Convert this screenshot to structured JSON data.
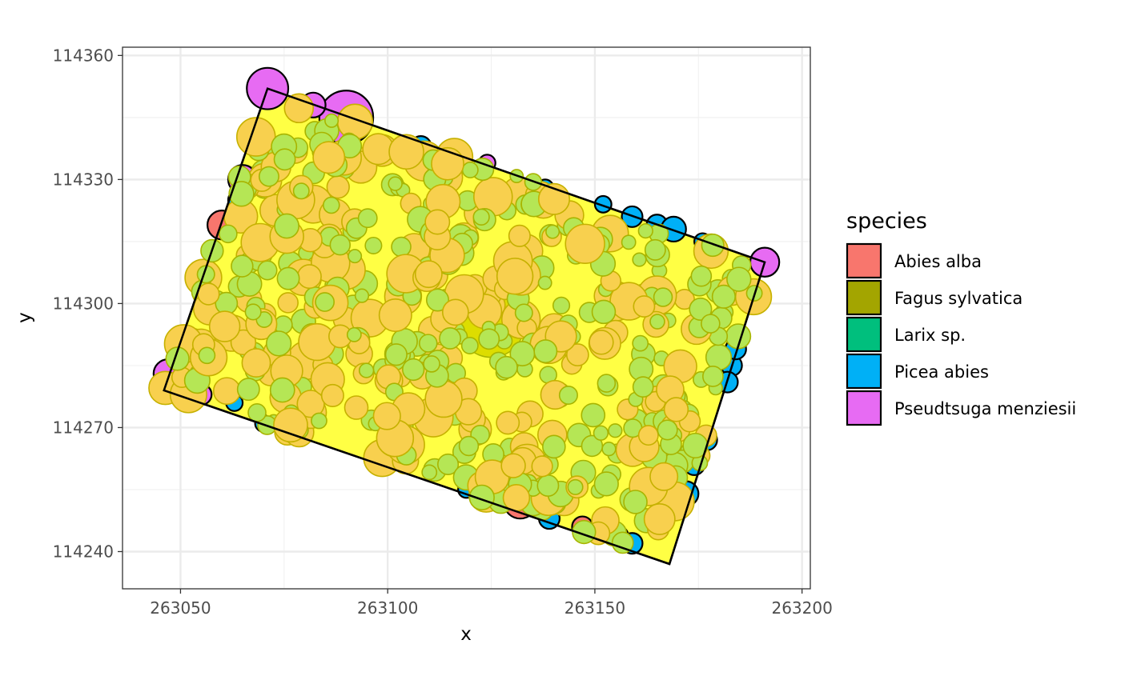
{
  "chart_data": {
    "type": "scatter",
    "xlabel": "x",
    "ylabel": "y",
    "xlim": [
      263036,
      263202
    ],
    "ylim": [
      114231,
      114362
    ],
    "x_ticks": [
      263050,
      263100,
      263150,
      263200
    ],
    "x_tick_labels": [
      "263050",
      "263100",
      "263150",
      "263200"
    ],
    "y_ticks": [
      114240,
      114270,
      114300,
      114330,
      114360
    ],
    "y_tick_labels": [
      "114240",
      "114270",
      "114300",
      "114330",
      "114360"
    ],
    "grid": true,
    "legend_title": "species",
    "legend_position": "right",
    "legend": [
      {
        "label": "Abies alba",
        "color": "#F8766D"
      },
      {
        "label": "Fagus sylvatica",
        "color": "#A3A500"
      },
      {
        "label": "Larix sp.",
        "color": "#00BF7D"
      },
      {
        "label": "Picea abies",
        "color": "#00B0F6"
      },
      {
        "label": "Pseudtsuga menziesii",
        "color": "#E76BF3"
      }
    ],
    "polygon": [
      [
        263071,
        114352
      ],
      [
        263191,
        114310
      ],
      [
        263168,
        114237
      ],
      [
        263046,
        114279
      ]
    ],
    "polygon_fill": "#FFFF44",
    "crown_fill": "#B5E655",
    "crown_stroke": "#A8B400",
    "large_crown_fill": "#F8D04E",
    "large_crown_stroke": "#C6B100",
    "center_crown_fill": "#DDDD00",
    "trees": [
      {
        "x": 263071,
        "y": 114352,
        "r": 5,
        "species": "Pseudtsuga menziesii"
      },
      {
        "x": 263090,
        "y": 114345,
        "r": 6.5,
        "species": "Pseudtsuga menziesii"
      },
      {
        "x": 263082,
        "y": 114348,
        "r": 3,
        "species": "Pseudtsuga menziesii"
      },
      {
        "x": 263191,
        "y": 114310,
        "r": 3.5,
        "species": "Pseudtsuga menziesii"
      },
      {
        "x": 263047,
        "y": 114283,
        "r": 3.5,
        "species": "Pseudtsuga menziesii"
      },
      {
        "x": 263055,
        "y": 114278,
        "r": 2.5,
        "species": "Pseudtsuga menziesii"
      },
      {
        "x": 263065,
        "y": 114330,
        "r": 3.5,
        "species": "Pseudtsuga menziesii"
      },
      {
        "x": 263124,
        "y": 114334,
        "r": 2,
        "species": "Pseudtsuga menziesii"
      },
      {
        "x": 263060,
        "y": 114319,
        "r": 3.5,
        "species": "Abies alba"
      },
      {
        "x": 263132,
        "y": 114252,
        "r": 4,
        "species": "Abies alba"
      },
      {
        "x": 263147,
        "y": 114246,
        "r": 2.5,
        "species": "Abies alba"
      },
      {
        "x": 263067,
        "y": 114339,
        "r": 2,
        "species": "Picea abies"
      },
      {
        "x": 263108,
        "y": 114338,
        "r": 2.5,
        "species": "Picea abies"
      },
      {
        "x": 263138,
        "y": 114328,
        "r": 2,
        "species": "Picea abies"
      },
      {
        "x": 263152,
        "y": 114324,
        "r": 2,
        "species": "Picea abies"
      },
      {
        "x": 263159,
        "y": 114321,
        "r": 2.5,
        "species": "Picea abies"
      },
      {
        "x": 263165,
        "y": 114319,
        "r": 2.5,
        "species": "Picea abies"
      },
      {
        "x": 263169,
        "y": 114318,
        "r": 3,
        "species": "Picea abies"
      },
      {
        "x": 263176,
        "y": 114315,
        "r": 2,
        "species": "Picea abies"
      },
      {
        "x": 263183,
        "y": 114285,
        "r": 2.5,
        "species": "Picea abies"
      },
      {
        "x": 263184,
        "y": 114289,
        "r": 2.5,
        "species": "Picea abies"
      },
      {
        "x": 263182,
        "y": 114281,
        "r": 2.5,
        "species": "Picea abies"
      },
      {
        "x": 263177,
        "y": 114267,
        "r": 2.5,
        "species": "Picea abies"
      },
      {
        "x": 263174,
        "y": 114261,
        "r": 2.5,
        "species": "Picea abies"
      },
      {
        "x": 263172,
        "y": 114254,
        "r": 3,
        "species": "Picea abies"
      },
      {
        "x": 263159,
        "y": 114242,
        "r": 2.5,
        "species": "Picea abies"
      },
      {
        "x": 263156,
        "y": 114244,
        "r": 2,
        "species": "Picea abies"
      },
      {
        "x": 263139,
        "y": 114248,
        "r": 2.5,
        "species": "Picea abies"
      },
      {
        "x": 263124,
        "y": 114254,
        "r": 2.5,
        "species": "Picea abies"
      },
      {
        "x": 263119,
        "y": 114255,
        "r": 2,
        "species": "Picea abies"
      },
      {
        "x": 263078,
        "y": 114271,
        "r": 2,
        "species": "Picea abies"
      },
      {
        "x": 263070,
        "y": 114271,
        "r": 2,
        "species": "Picea abies"
      },
      {
        "x": 263063,
        "y": 114276,
        "r": 2,
        "species": "Picea abies"
      },
      {
        "x": 263064,
        "y": 114325,
        "r": 2.5,
        "species": "Picea abies"
      },
      {
        "x": 263125,
        "y": 114295,
        "r": 8,
        "species": "Fagus sylvatica"
      }
    ]
  }
}
